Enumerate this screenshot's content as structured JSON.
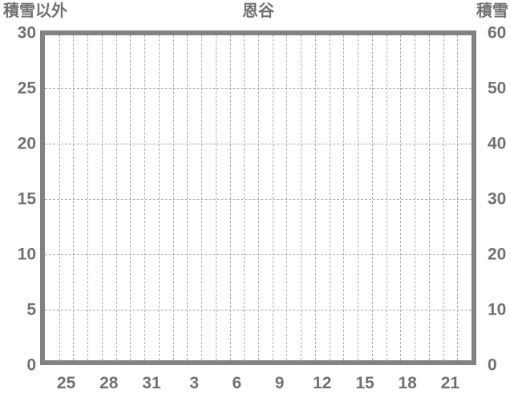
{
  "chart_data": {
    "type": "line",
    "title": "恩谷",
    "series": [],
    "left_axis": {
      "label": "積雪以外",
      "min": 0,
      "max": 30,
      "ticks": [
        "30",
        "25",
        "20",
        "15",
        "10",
        "5",
        "0"
      ]
    },
    "right_axis": {
      "label": "積雪",
      "min": 0,
      "max": 60,
      "ticks": [
        "60",
        "50",
        "40",
        "30",
        "20",
        "10",
        "0"
      ]
    },
    "x_axis": {
      "tick_labels": [
        "25",
        "28",
        "31",
        "3",
        "6",
        "9",
        "12",
        "15",
        "18",
        "21"
      ],
      "num_categories": 30,
      "first_tick_category_index": 1,
      "tick_step": 3
    },
    "grid": {
      "vertical_line_count": 29,
      "horizontal_line_count": 5,
      "line_style": "dashed"
    },
    "legend": "none",
    "colors": {
      "text": "#717171",
      "plot_border": "#828282",
      "gridline": "#a9a9a9",
      "background": "#ffffff"
    }
  }
}
